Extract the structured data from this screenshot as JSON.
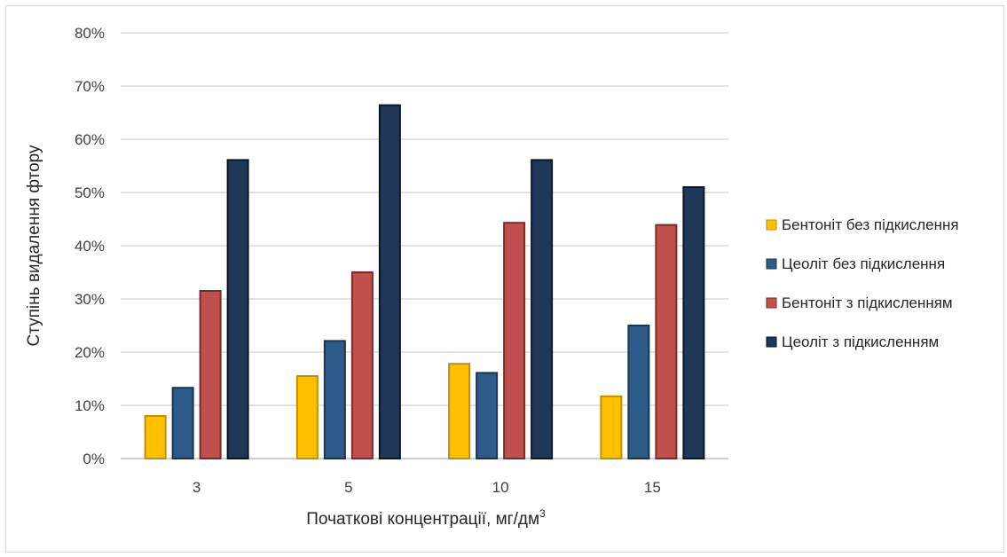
{
  "chart_data": {
    "type": "bar",
    "title": "",
    "xlabel": "Початкові концентрації, мг/дм",
    "xlabel_sup": "3",
    "ylabel": "Ступінь видалення фтору",
    "ylim": [
      0,
      0.8
    ],
    "y_tick_values": [
      0,
      0.1,
      0.2,
      0.3,
      0.4,
      0.5,
      0.6,
      0.7,
      0.8
    ],
    "y_tick_labels": [
      "0%",
      "10%",
      "20%",
      "30%",
      "40%",
      "50%",
      "60%",
      "70%",
      "80%"
    ],
    "grid": true,
    "legend_position": "right",
    "categories": [
      "3",
      "5",
      "10",
      "15"
    ],
    "series": [
      {
        "name": "Бентоніт без підкислення",
        "color": "#ffc000",
        "stroke": "#c09000",
        "values": [
          0.08,
          0.155,
          0.178,
          0.117
        ]
      },
      {
        "name": "Цеоліт без підкислення",
        "color": "#2e5c8a",
        "stroke": "#1a3552",
        "values": [
          0.133,
          0.221,
          0.161,
          0.25
        ]
      },
      {
        "name": "Бентоніт з підкисленням",
        "color": "#c0504d",
        "stroke": "#7f2a28",
        "values": [
          0.315,
          0.35,
          0.443,
          0.439
        ]
      },
      {
        "name": "Цеоліт з підкисленням",
        "color": "#1f3858",
        "stroke": "#0b1626",
        "values": [
          0.561,
          0.664,
          0.561,
          0.51
        ]
      }
    ]
  }
}
